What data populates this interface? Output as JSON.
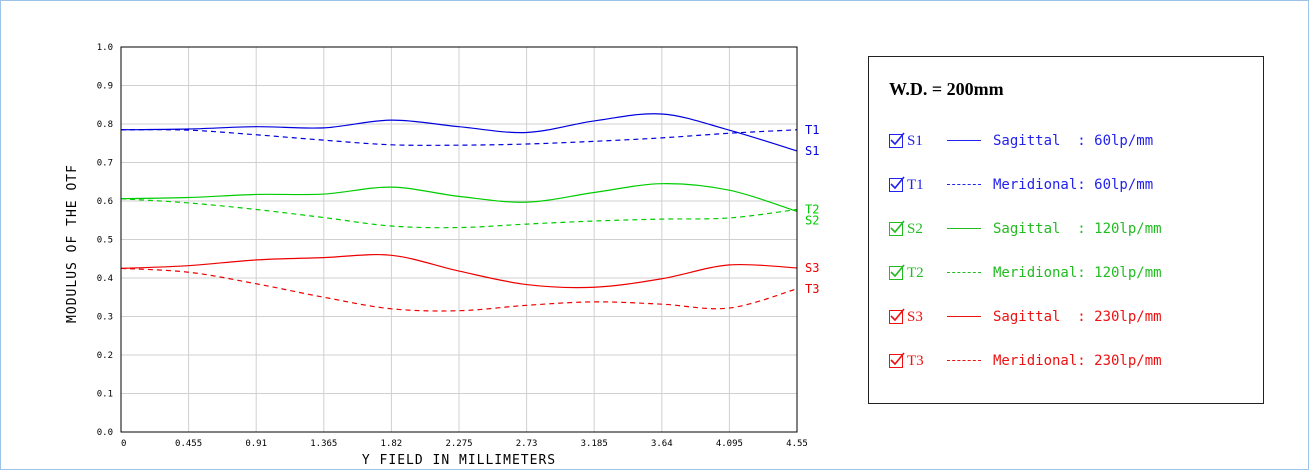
{
  "chart_data": {
    "type": "line",
    "title": "",
    "xlabel": "Y FIELD IN MILLIMETERS",
    "ylabel": "MODULUS OF THE OTF",
    "xlim": [
      0,
      4.55
    ],
    "ylim": [
      0.0,
      1.0
    ],
    "grid": true,
    "x_ticks": [
      "0",
      "0.455",
      "0.91",
      "1.365",
      "1.82",
      "2.275",
      "2.73",
      "3.185",
      "3.64",
      "4.095",
      "4.55"
    ],
    "y_ticks": [
      "0.0",
      "0.1",
      "0.2",
      "0.3",
      "0.4",
      "0.5",
      "0.6",
      "0.7",
      "0.8",
      "0.9",
      "1.0"
    ],
    "x": [
      0,
      0.455,
      0.91,
      1.365,
      1.82,
      2.275,
      2.73,
      3.185,
      3.64,
      4.095,
      4.55
    ],
    "series": [
      {
        "name": "S1",
        "color": "#0000dd",
        "style": "solid",
        "values": [
          0.785,
          0.787,
          0.793,
          0.79,
          0.81,
          0.793,
          0.778,
          0.808,
          0.826,
          0.784,
          0.73
        ]
      },
      {
        "name": "T1",
        "color": "#0000dd",
        "style": "dashed",
        "values": [
          0.785,
          0.784,
          0.772,
          0.758,
          0.746,
          0.745,
          0.748,
          0.755,
          0.764,
          0.776,
          0.785
        ]
      },
      {
        "name": "S2",
        "color": "#00cc00",
        "style": "solid",
        "values": [
          0.606,
          0.609,
          0.617,
          0.618,
          0.636,
          0.612,
          0.597,
          0.622,
          0.645,
          0.628,
          0.573
        ]
      },
      {
        "name": "T2",
        "color": "#00cc00",
        "style": "dashed",
        "values": [
          0.606,
          0.595,
          0.578,
          0.557,
          0.535,
          0.531,
          0.54,
          0.548,
          0.553,
          0.556,
          0.578
        ]
      },
      {
        "name": "S3",
        "color": "#ee0000",
        "style": "solid",
        "values": [
          0.425,
          0.432,
          0.447,
          0.453,
          0.459,
          0.418,
          0.383,
          0.376,
          0.398,
          0.434,
          0.426
        ]
      },
      {
        "name": "T3",
        "color": "#ee0000",
        "style": "dashed",
        "values": [
          0.425,
          0.415,
          0.385,
          0.35,
          0.32,
          0.315,
          0.329,
          0.338,
          0.332,
          0.322,
          0.372
        ]
      }
    ],
    "end_labels": [
      "T1",
      "S1",
      "S2",
      "T2",
      "S3",
      "T3"
    ]
  },
  "legend": {
    "title": "W.D. = 200mm",
    "items": [
      {
        "code": "S1",
        "desc": "Sagittal  : 60lp/mm",
        "color": "#2222ee",
        "style": "solid"
      },
      {
        "code": "T1",
        "desc": "Meridional: 60lp/mm",
        "color": "#2222ee",
        "style": "dashed"
      },
      {
        "code": "S2",
        "desc": "Sagittal  : 120lp/mm",
        "color": "#22bb22",
        "style": "solid"
      },
      {
        "code": "T2",
        "desc": "Meridional: 120lp/mm",
        "color": "#22bb22",
        "style": "dashed"
      },
      {
        "code": "S3",
        "desc": "Sagittal  : 230lp/mm",
        "color": "#ee1111",
        "style": "solid"
      },
      {
        "code": "T3",
        "desc": "Meridional: 230lp/mm",
        "color": "#ee1111",
        "style": "dashed"
      }
    ]
  }
}
